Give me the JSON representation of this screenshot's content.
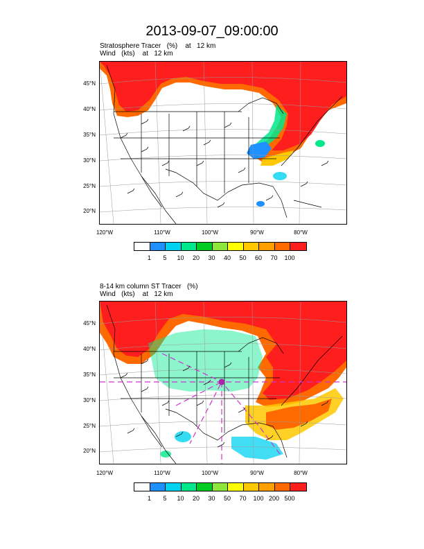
{
  "title": "2013-09-07_09:00:00",
  "panels": [
    {
      "line1": "Stratosphere Tracer   (%)    at   12 km",
      "line2": "Wind   (kts)    at   12 km",
      "lat_labels": [
        "45°N",
        "40°N",
        "35°N",
        "30°N",
        "25°N",
        "20°N"
      ],
      "lon_labels": [
        "120°W",
        "110°W",
        "100°W",
        "90°W",
        "80°W"
      ],
      "colorbar": {
        "colors": [
          "#ffffff",
          "#1e90ff",
          "#00d2f0",
          "#00e88c",
          "#00cc22",
          "#8ee63a",
          "#ffff00",
          "#ffc800",
          "#ffa000",
          "#ff6a00",
          "#ff1e1e"
        ],
        "labels": [
          "1",
          "5",
          "10",
          "20",
          "30",
          "40",
          "50",
          "60",
          "70",
          "100"
        ]
      }
    },
    {
      "line1": "8-14 km column ST Tracer   (%)",
      "line2": "Wind   (kts)    at   12 km",
      "lat_labels": [
        "45°N",
        "40°N",
        "35°N",
        "30°N",
        "25°N",
        "20°N"
      ],
      "lon_labels": [
        "120°W",
        "110°W",
        "100°W",
        "90°W",
        "80°W"
      ],
      "colorbar": {
        "colors": [
          "#ffffff",
          "#1e90ff",
          "#00d2f0",
          "#00e88c",
          "#00cc22",
          "#8ee63a",
          "#ffff00",
          "#ffc800",
          "#ffa000",
          "#ff6a00",
          "#ff1e1e"
        ],
        "labels": [
          "1",
          "5",
          "10",
          "20",
          "30",
          "50",
          "70",
          "100",
          "200",
          "500"
        ]
      }
    }
  ],
  "colors": {
    "high": "#ff1e1e",
    "high_edge": "#ff6a00",
    "mid": "#00e88c",
    "low": "#1e90ff",
    "track": "#cc33cc"
  }
}
